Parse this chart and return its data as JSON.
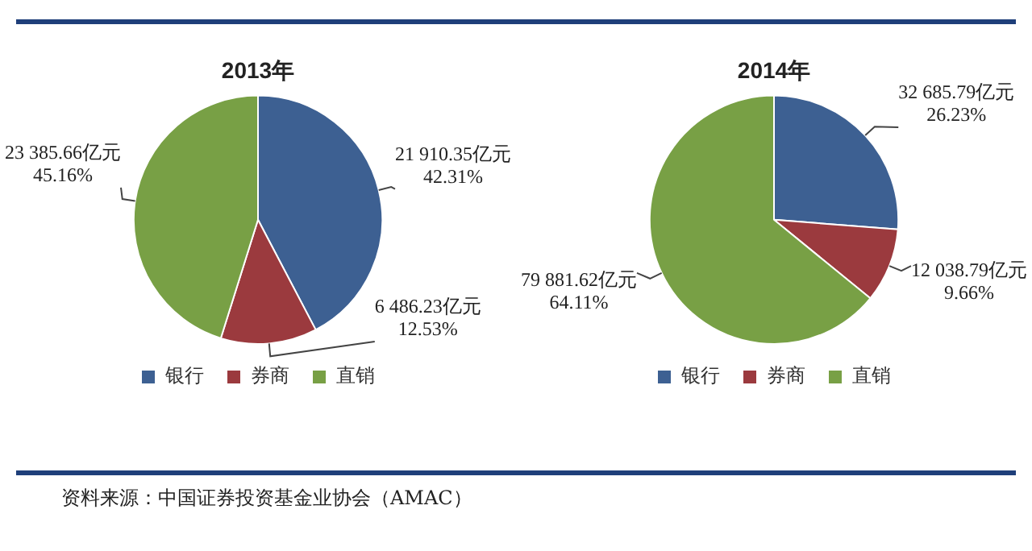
{
  "chart_data": [
    {
      "type": "pie",
      "title": "2013年",
      "categories": [
        "银行",
        "券商",
        "直销"
      ],
      "values": [
        21910.35,
        6486.23,
        23385.66
      ],
      "colors": [
        "#3d6092",
        "#9b3a3e",
        "#78a045"
      ],
      "value_labels": [
        "21 910.35亿元\n42.31%",
        "6 486.23亿元\n12.53%",
        "23 385.66亿元\n45.16%"
      ],
      "legend": "bottom"
    },
    {
      "type": "pie",
      "title": "2014年",
      "categories": [
        "银行",
        "券商",
        "直销"
      ],
      "values": [
        32685.79,
        12038.79,
        79881.62
      ],
      "colors": [
        "#3d6092",
        "#9b3a3e",
        "#78a045"
      ],
      "value_labels": [
        "32 685.79亿元\n26.23%",
        "12 038.79亿元\n9.66%",
        "79 881.62亿元\n64.11%"
      ],
      "legend": "bottom",
      "annotations": [
        "资料来源：中国证券投资基金业协会（AMAC）"
      ]
    }
  ]
}
